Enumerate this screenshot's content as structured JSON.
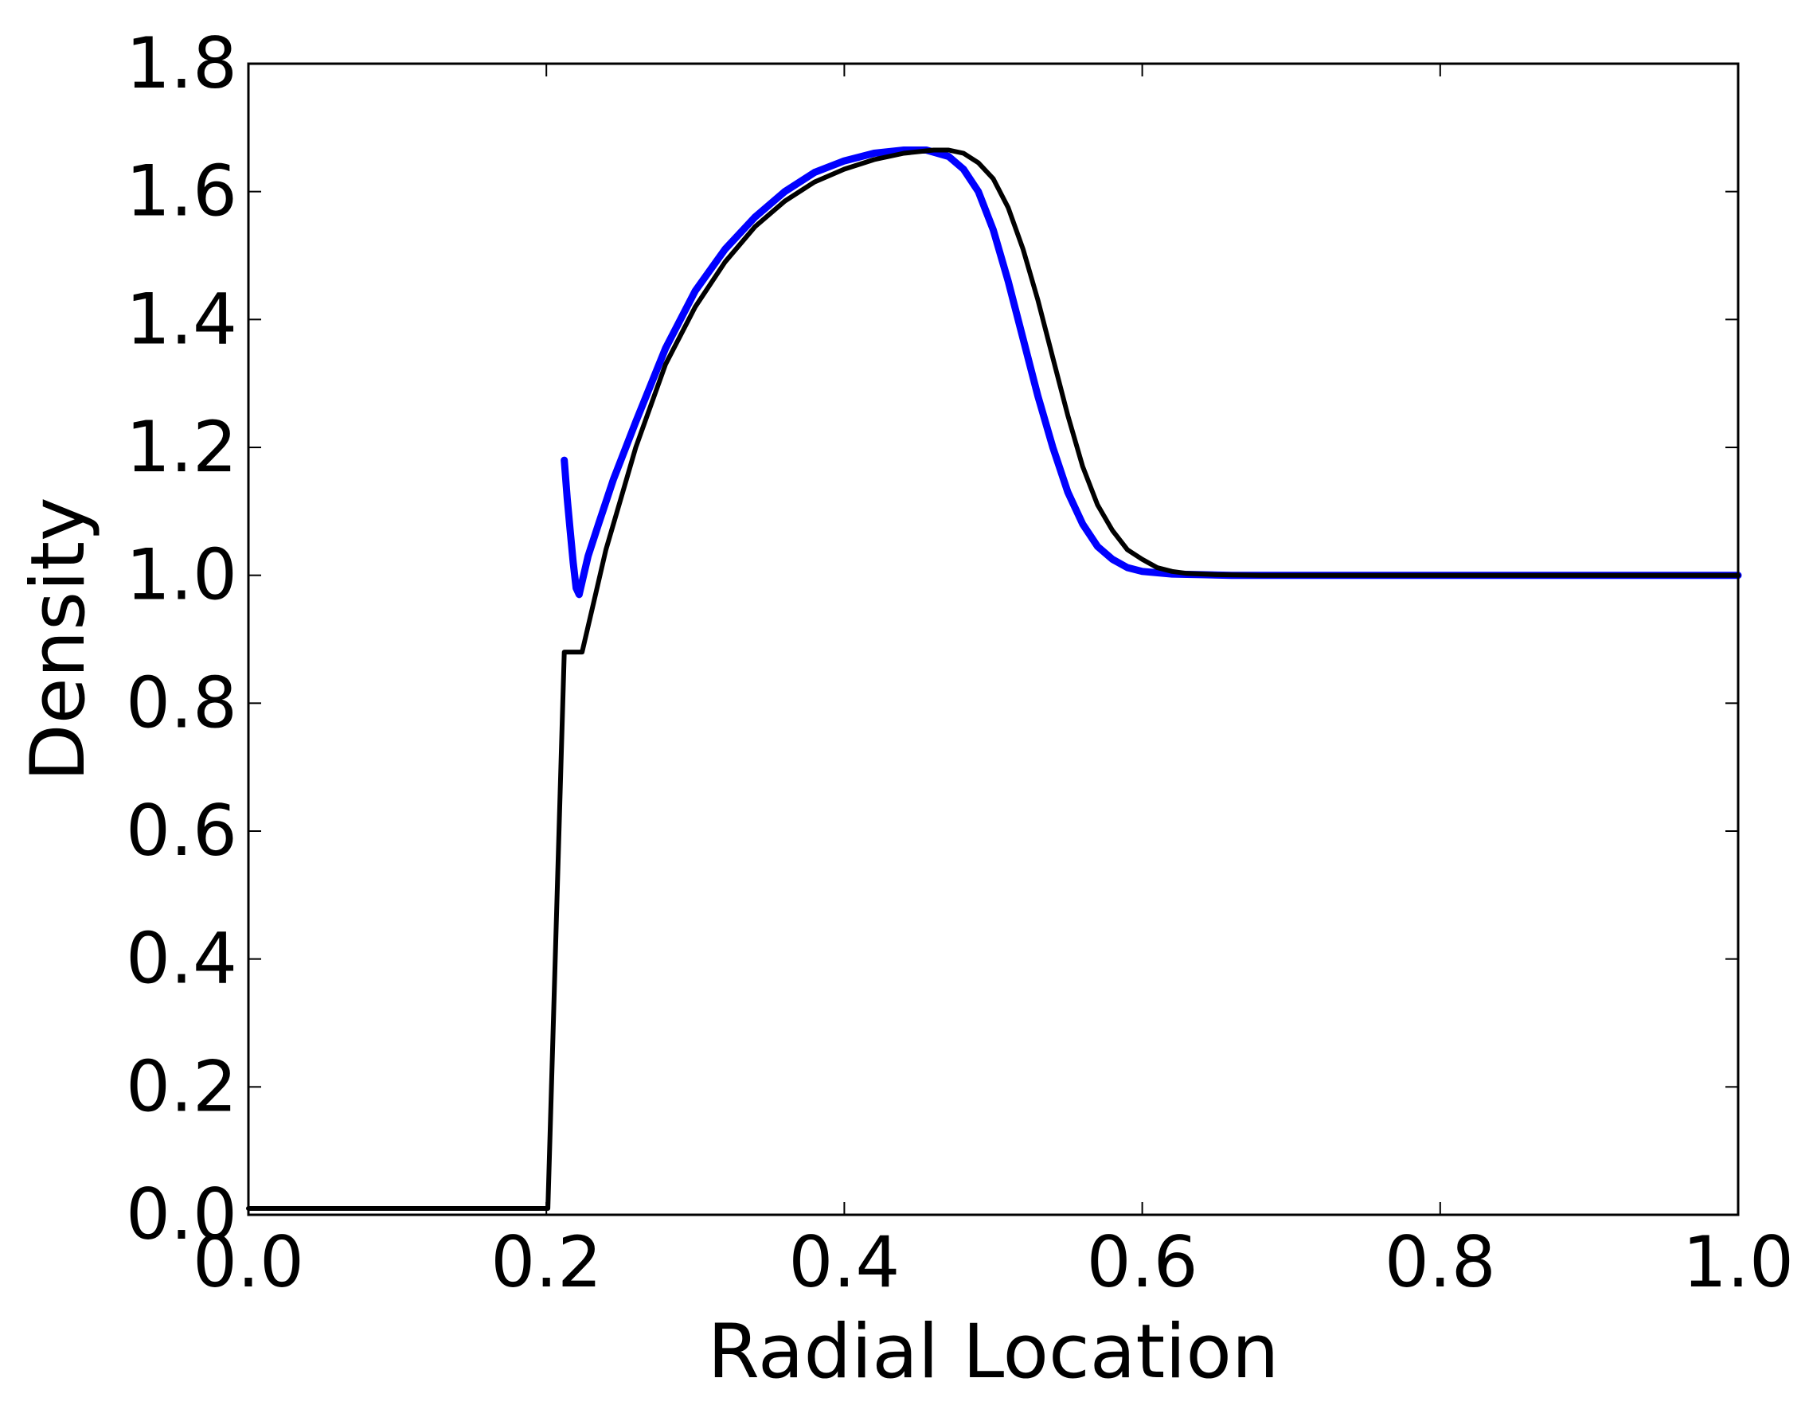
{
  "chart_data": {
    "type": "line",
    "xlabel": "Radial Location",
    "ylabel": "Density",
    "xlim": [
      0.0,
      1.0
    ],
    "ylim": [
      0.0,
      1.8
    ],
    "x_ticks": [
      "0.0",
      "0.2",
      "0.4",
      "0.6",
      "0.8",
      "1.0"
    ],
    "y_ticks": [
      "0.0",
      "0.2",
      "0.4",
      "0.6",
      "0.8",
      "1.0",
      "1.2",
      "1.4",
      "1.6",
      "1.8"
    ],
    "grid": false,
    "legend": "none",
    "colors": {
      "reference": "#000000",
      "simulation": "#0000ff"
    },
    "series": [
      {
        "role": "reference",
        "x": [
          0.0,
          0.2,
          0.201,
          0.212,
          0.224,
          0.232,
          0.24,
          0.25,
          0.26,
          0.28,
          0.3,
          0.32,
          0.34,
          0.36,
          0.38,
          0.4,
          0.42,
          0.44,
          0.46,
          0.47,
          0.48,
          0.49,
          0.5,
          0.51,
          0.52,
          0.53,
          0.54,
          0.55,
          0.56,
          0.57,
          0.58,
          0.59,
          0.6,
          0.61,
          0.62,
          0.63,
          0.65,
          0.68,
          0.7,
          0.8,
          0.9,
          1.0
        ],
        "y": [
          0.01,
          0.01,
          0.01,
          0.88,
          0.88,
          0.96,
          1.04,
          1.12,
          1.2,
          1.33,
          1.42,
          1.49,
          1.545,
          1.585,
          1.615,
          1.635,
          1.65,
          1.66,
          1.665,
          1.665,
          1.66,
          1.645,
          1.62,
          1.575,
          1.51,
          1.43,
          1.34,
          1.25,
          1.17,
          1.11,
          1.07,
          1.04,
          1.025,
          1.012,
          1.006,
          1.003,
          1.001,
          1.0,
          1.0,
          1.0,
          1.0,
          1.0
        ]
      },
      {
        "role": "simulation",
        "x": [
          0.212,
          0.214,
          0.216,
          0.218,
          0.22,
          0.222,
          0.224,
          0.228,
          0.235,
          0.245,
          0.26,
          0.28,
          0.3,
          0.32,
          0.34,
          0.36,
          0.38,
          0.4,
          0.42,
          0.44,
          0.455,
          0.47,
          0.48,
          0.49,
          0.5,
          0.51,
          0.52,
          0.53,
          0.54,
          0.55,
          0.56,
          0.57,
          0.58,
          0.59,
          0.6,
          0.62,
          0.64,
          0.66,
          0.7,
          0.8,
          0.9,
          1.0
        ],
        "y": [
          1.18,
          1.12,
          1.07,
          1.02,
          0.98,
          0.97,
          0.99,
          1.03,
          1.08,
          1.15,
          1.24,
          1.355,
          1.445,
          1.51,
          1.56,
          1.6,
          1.63,
          1.648,
          1.66,
          1.665,
          1.665,
          1.655,
          1.635,
          1.6,
          1.54,
          1.46,
          1.37,
          1.28,
          1.2,
          1.13,
          1.08,
          1.045,
          1.025,
          1.012,
          1.006,
          1.002,
          1.001,
          1.0,
          1.0,
          1.0,
          1.0,
          1.0
        ]
      }
    ]
  }
}
